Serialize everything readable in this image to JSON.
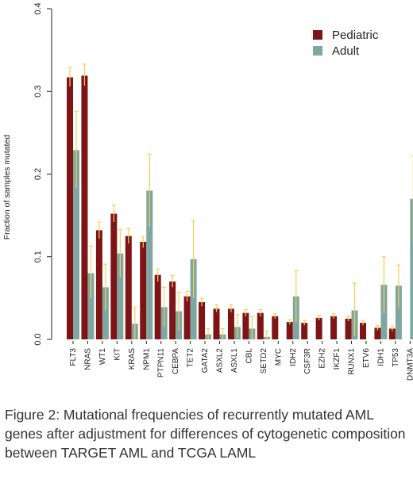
{
  "chart_data": {
    "type": "bar",
    "ylabel": "Fraction of samples mutated",
    "ylim": [
      0,
      0.4
    ],
    "yticks": [
      "0.0",
      "0.1",
      "0.2",
      "0.3",
      "0.4"
    ],
    "legend_position": "top-right",
    "categories": [
      "FLT3",
      "NRAS",
      "WT1",
      "KIT",
      "KRAS",
      "NPM1",
      "PTPN11",
      "CEBPA",
      "TET2",
      "GATA2",
      "ASXL2",
      "ASXL1",
      "CBL",
      "SETD2",
      "MYC",
      "IDH2",
      "CSF3R",
      "EZH2",
      "IKZF1",
      "RUNX1",
      "ETV6",
      "IDH1",
      "TP53",
      "DNMT3A"
    ],
    "series": [
      {
        "name": "Pediatric",
        "color": "#7f1416",
        "values": [
          0.317,
          0.319,
          0.132,
          0.152,
          0.125,
          0.118,
          0.078,
          0.07,
          0.052,
          0.045,
          0.037,
          0.037,
          0.032,
          0.032,
          0.028,
          0.021,
          0.02,
          0.026,
          0.028,
          0.025,
          0.02,
          0.014,
          0.013,
          0.0
        ],
        "error": [
          [
            0.306,
            0.329
          ],
          [
            0.307,
            0.333
          ],
          [
            0.122,
            0.142
          ],
          [
            0.142,
            0.162
          ],
          [
            0.116,
            0.134
          ],
          [
            0.111,
            0.124
          ],
          [
            0.07,
            0.085
          ],
          [
            0.063,
            0.077
          ],
          [
            0.046,
            0.058
          ],
          [
            0.04,
            0.05
          ],
          [
            0.033,
            0.042
          ],
          [
            0.033,
            0.042
          ],
          [
            0.028,
            0.036
          ],
          [
            0.028,
            0.036
          ],
          [
            0.025,
            0.031
          ],
          [
            0.018,
            0.024
          ],
          [
            0.017,
            0.023
          ],
          [
            0.023,
            0.029
          ],
          [
            0.025,
            0.031
          ],
          [
            0.022,
            0.028
          ],
          [
            0.017,
            0.023
          ],
          [
            0.011,
            0.017
          ],
          [
            0.01,
            0.016
          ],
          [
            0.0,
            0.0
          ]
        ]
      },
      {
        "name": "Adult",
        "color": "#7fa6a0",
        "values": [
          0.229,
          0.08,
          0.063,
          0.104,
          0.019,
          0.18,
          0.039,
          0.034,
          0.097,
          0.006,
          0.006,
          0.015,
          0.013,
          0.003,
          0.0,
          0.052,
          0.0,
          0.0,
          0.0,
          0.035,
          0.0,
          0.066,
          0.065,
          0.17
        ],
        "error": [
          [
            0.183,
            0.276
          ],
          [
            0.05,
            0.113
          ],
          [
            0.035,
            0.091
          ],
          [
            0.075,
            0.133
          ],
          [
            0.0,
            0.039
          ],
          [
            0.136,
            0.224
          ],
          [
            0.015,
            0.063
          ],
          [
            0.011,
            0.057
          ],
          [
            0.05,
            0.144
          ],
          [
            0.0,
            0.013
          ],
          [
            0.0,
            0.013
          ],
          [
            0.002,
            0.03
          ],
          [
            0.0,
            0.028
          ],
          [
            0.0,
            0.01
          ],
          [
            0.0,
            0.0
          ],
          [
            0.021,
            0.083
          ],
          [
            0.0,
            0.0
          ],
          [
            0.0,
            0.0
          ],
          [
            0.0,
            0.0
          ],
          [
            0.004,
            0.068
          ],
          [
            0.0,
            0.0
          ],
          [
            0.032,
            0.1
          ],
          [
            0.038,
            0.09
          ],
          [
            0.118,
            0.222
          ]
        ]
      }
    ],
    "error_color": "#f5cf55"
  },
  "caption": "Figure 2: Mutational frequencies of recurrently mutated AML genes after adjustment for differences of cytogenetic composition between TARGET AML and TCGA LAML"
}
